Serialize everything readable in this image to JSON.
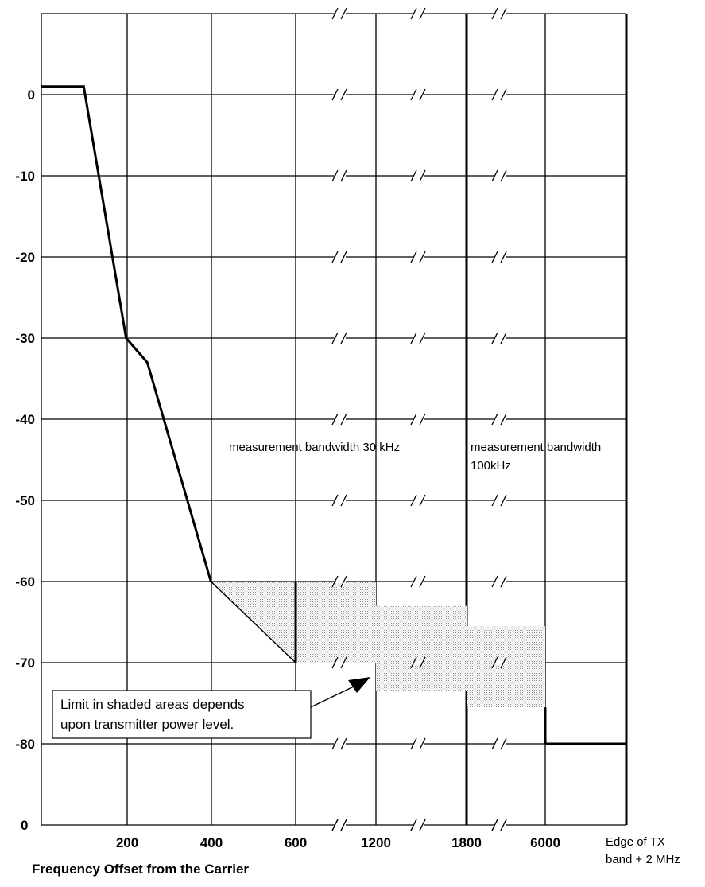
{
  "chart_data": {
    "type": "line",
    "title": "",
    "xlabel": "Frequency Offset from the Carrier",
    "ylabel": "",
    "x_ticks": [
      "200",
      "400",
      "600",
      "1200",
      "1800",
      "6000"
    ],
    "x_end_label": [
      "Edge of TX",
      "band + 2 MHz"
    ],
    "y_ticks": [
      "0",
      "-10",
      "-20",
      "-30",
      "-40",
      "-50",
      "-60",
      "-70",
      "-80"
    ],
    "ylim": [
      -90,
      10
    ],
    "grid": true,
    "axis_breaks": "between 600 and 6000 (broken frequency axis)",
    "series": [
      {
        "x": [
          0,
          100,
          200,
          250,
          400
        ],
        "y": [
          1,
          1,
          -30,
          -33,
          -60
        ]
      },
      {
        "x": [
          "6000",
          "Edge of TX band + 2 MHz"
        ],
        "y": [
          -80,
          -80
        ]
      }
    ],
    "shaded_regions": [
      {
        "x_from": 400,
        "x_to": 600,
        "y_upper": -60,
        "y_lower": "sloping to -70"
      },
      {
        "x_from": 600,
        "x_to": 1200,
        "y_upper": -60,
        "y_lower": -70
      },
      {
        "x_from": 1200,
        "x_to": 1800,
        "y_upper": -63,
        "y_lower": -73.5
      },
      {
        "x_from": 1800,
        "x_to": 6000,
        "y_upper": -65.5,
        "y_lower": -75.5
      }
    ],
    "annotations": [
      "measurement bandwidth 30 kHz",
      "measurement bandwidth 100kHz",
      "Limit in shaded areas depends upon transmitter power level."
    ]
  },
  "labels": {
    "bw30": "measurement bandwidth 30 kHz",
    "bw100_line1": "measurement bandwidth",
    "bw100_line2": "100kHz",
    "callout_line1": "Limit in shaded areas depends",
    "callout_line2": "upon transmitter power level."
  }
}
